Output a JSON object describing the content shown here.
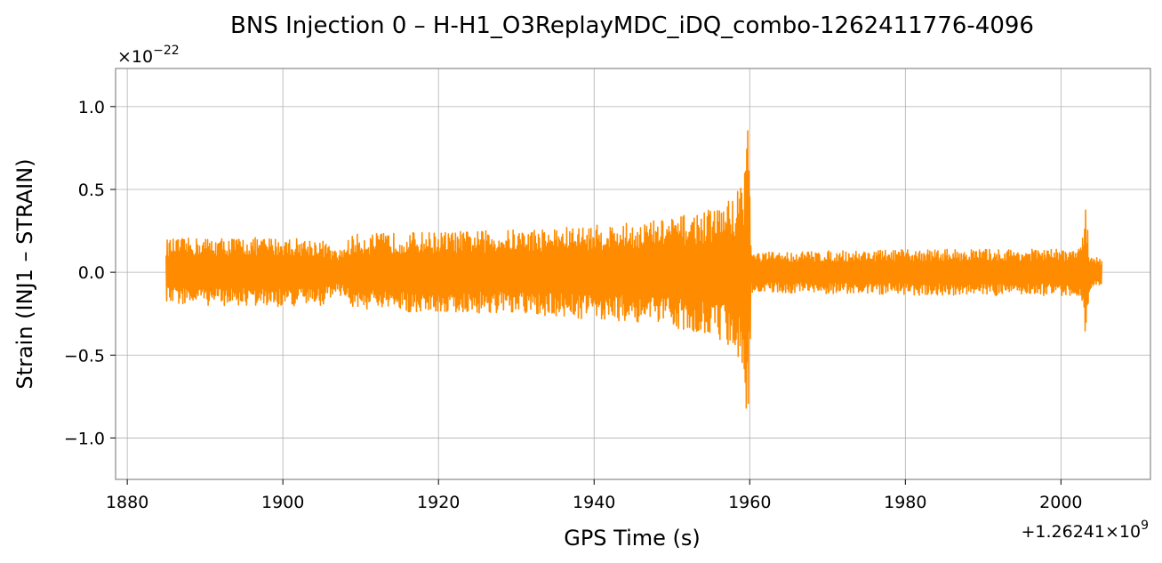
{
  "chart_data": {
    "type": "line",
    "title": "BNS Injection 0 – H-H1_O3ReplayMDC_iDQ_combo-1262411776-4096",
    "xlabel": "GPS Time (s)",
    "ylabel": "Strain (INJ1 – STRAIN)",
    "x_offset_text": "+1.26241×10",
    "x_offset_exp": "9",
    "y_scale_text": "×10",
    "y_scale_exp": "−22",
    "xlim": [
      1878.5,
      2011.5
    ],
    "ylim": [
      -1.25,
      1.23
    ],
    "x_ticks": [
      1880,
      1900,
      1920,
      1940,
      1960,
      1980,
      2000
    ],
    "x_tick_labels": [
      "1880",
      "1900",
      "1920",
      "1940",
      "1960",
      "1980",
      "2000"
    ],
    "y_ticks": [
      -1.0,
      -0.5,
      0.0,
      0.5,
      1.0
    ],
    "y_tick_labels": [
      "−1.0",
      "−0.5",
      "0.0",
      "0.5",
      "1.0"
    ],
    "grid": true,
    "series": [
      {
        "color": "#ff8c00",
        "x_start": 1885.0,
        "x_end": 2005.3,
        "envelope": [
          {
            "x": 1885.0,
            "lo": -0.19,
            "hi": 0.2
          },
          {
            "x": 1890.0,
            "lo": -0.2,
            "hi": 0.21
          },
          {
            "x": 1900.0,
            "lo": -0.21,
            "hi": 0.21
          },
          {
            "x": 1905.0,
            "lo": -0.2,
            "hi": 0.2
          },
          {
            "x": 1907.0,
            "lo": -0.12,
            "hi": 0.12
          },
          {
            "x": 1909.0,
            "lo": -0.22,
            "hi": 0.23
          },
          {
            "x": 1915.0,
            "lo": -0.24,
            "hi": 0.24
          },
          {
            "x": 1925.0,
            "lo": -0.25,
            "hi": 0.25
          },
          {
            "x": 1935.0,
            "lo": -0.27,
            "hi": 0.27
          },
          {
            "x": 1945.0,
            "lo": -0.3,
            "hi": 0.3
          },
          {
            "x": 1950.0,
            "lo": -0.33,
            "hi": 0.33
          },
          {
            "x": 1955.0,
            "lo": -0.38,
            "hi": 0.38
          },
          {
            "x": 1958.0,
            "lo": -0.46,
            "hi": 0.46
          },
          {
            "x": 1959.3,
            "lo": -0.62,
            "hi": 0.62
          },
          {
            "x": 1959.8,
            "lo": -1.13,
            "hi": 1.11
          },
          {
            "x": 1960.2,
            "lo": -0.12,
            "hi": 0.12
          },
          {
            "x": 1970.0,
            "lo": -0.13,
            "hi": 0.13
          },
          {
            "x": 1985.0,
            "lo": -0.14,
            "hi": 0.14
          },
          {
            "x": 1995.0,
            "lo": -0.14,
            "hi": 0.14
          },
          {
            "x": 2002.5,
            "lo": -0.14,
            "hi": 0.14
          },
          {
            "x": 2003.2,
            "lo": -0.42,
            "hi": 0.44
          },
          {
            "x": 2003.6,
            "lo": -0.12,
            "hi": 0.12
          },
          {
            "x": 2005.3,
            "lo": -0.08,
            "hi": 0.08
          }
        ]
      }
    ]
  }
}
